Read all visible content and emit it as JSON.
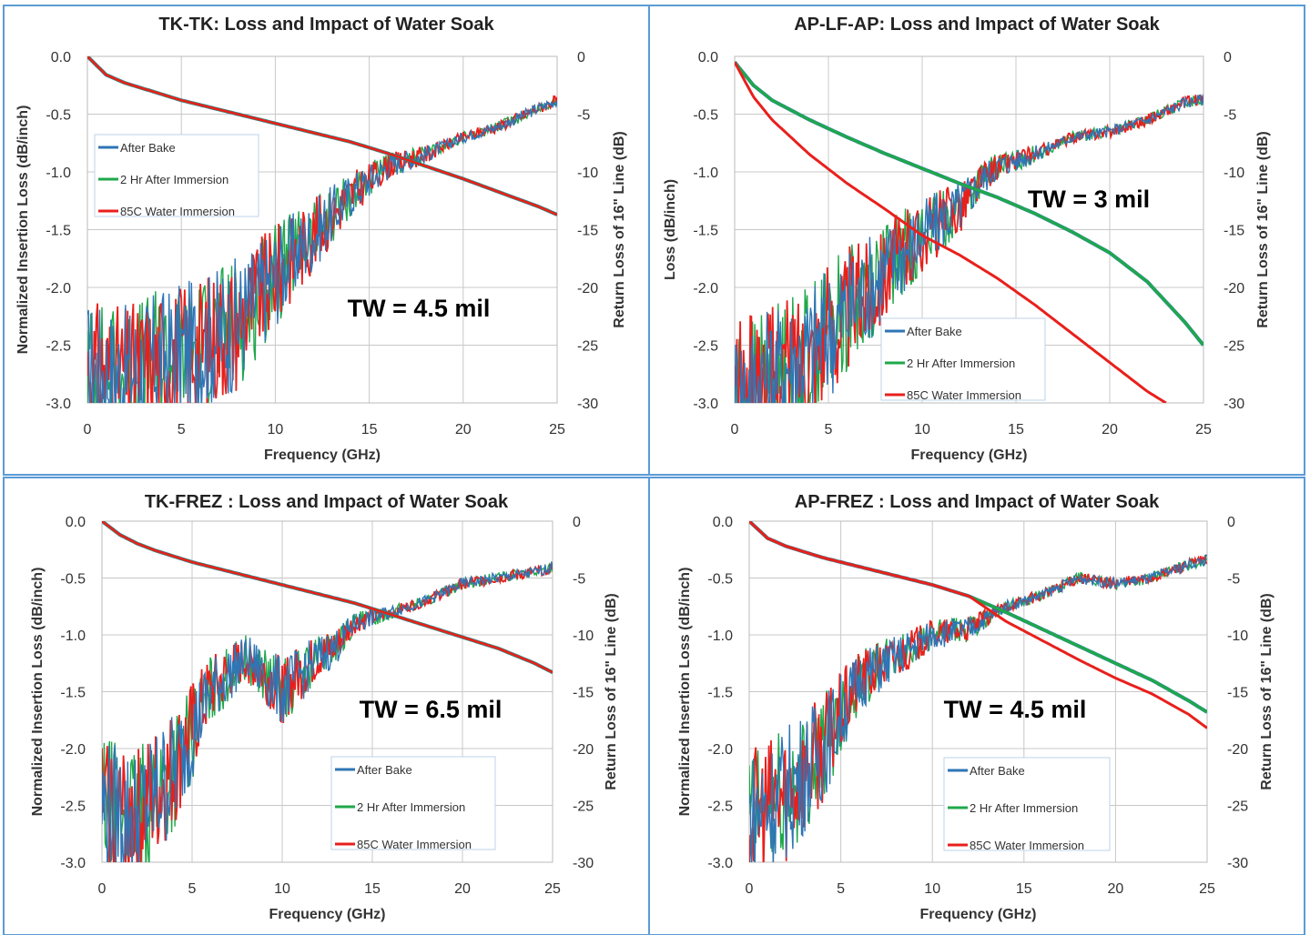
{
  "chart_data": [
    {
      "type": "line",
      "title": "TK-TK: Loss and Impact of Water Soak",
      "xlabel": "Frequency (GHz)",
      "ylabel": "Normalized Insertion Loss (dB/inch)",
      "y2label": "Return Loss of 16\" Line (dB)",
      "xlim": [
        0,
        25
      ],
      "xticks": [
        "0",
        "5",
        "10",
        "15",
        "20",
        "25"
      ],
      "ylim": [
        -3.0,
        0.0
      ],
      "yticks": [
        "0.0",
        "-0.5",
        "-1.0",
        "-1.5",
        "-2.0",
        "-2.5",
        "-3.0"
      ],
      "y2lim": [
        -30,
        0
      ],
      "y2ticks": [
        "0",
        "-5",
        "-10",
        "-15",
        "-20",
        "-25",
        "-30"
      ],
      "annotation": "TW = 4.5 mil",
      "legend_position": "upper-left",
      "series": [
        {
          "name": "After Bake",
          "color": "#2e75b6"
        },
        {
          "name": "2 Hr After Immersion",
          "color": "#1fa84a"
        },
        {
          "name": "85C Water Immersion",
          "color": "#e8201c"
        }
      ],
      "insertion_loss": {
        "x": [
          0,
          1,
          2,
          3,
          4,
          5,
          6,
          8,
          10,
          12,
          14,
          16,
          18,
          20,
          22,
          24,
          25
        ],
        "y": [
          0,
          -0.16,
          -0.23,
          -0.28,
          -0.33,
          -0.38,
          -0.42,
          -0.5,
          -0.58,
          -0.66,
          -0.74,
          -0.84,
          -0.95,
          -1.06,
          -1.18,
          -1.3,
          -1.37
        ]
      },
      "return_loss": {
        "x": [
          0,
          2,
          4,
          6,
          8,
          9,
          10,
          12,
          14,
          16,
          18,
          20,
          22,
          24,
          25
        ],
        "y": [
          -27,
          -27.5,
          -26,
          -25,
          -23,
          -21,
          -19,
          -15.5,
          -12,
          -9.5,
          -8.5,
          -7,
          -6,
          -4.5,
          -3.8
        ]
      }
    },
    {
      "type": "line",
      "title": "AP-LF-AP: Loss and Impact of Water Soak",
      "xlabel": "Frequency (GHz)",
      "ylabel": "Loss (dB/inch)",
      "y2label": "Return Loss of 16\" Line (dB)",
      "xlim": [
        0,
        25
      ],
      "xticks": [
        "0",
        "5",
        "10",
        "15",
        "20",
        "25"
      ],
      "ylim": [
        -3.0,
        0.0
      ],
      "yticks": [
        "0.0",
        "-0.5",
        "-1.0",
        "-1.5",
        "-2.0",
        "-2.5",
        "-3.0"
      ],
      "y2lim": [
        -30,
        0
      ],
      "y2ticks": [
        "0",
        "-5",
        "-10",
        "-15",
        "-20",
        "-25",
        "-30"
      ],
      "annotation": "TW = 3 mil",
      "legend_position": "lower-center",
      "series": [
        {
          "name": "After Bake",
          "color": "#2e75b6"
        },
        {
          "name": "2 Hr After Immersion",
          "color": "#1fa84a"
        },
        {
          "name": "85C Water Immersion",
          "color": "#e8201c"
        }
      ],
      "insertion_loss_bake": {
        "x": [
          0,
          1,
          2,
          4,
          6,
          8,
          10,
          12,
          14,
          16,
          18,
          20,
          22,
          24,
          25
        ],
        "y": [
          -0.05,
          -0.25,
          -0.38,
          -0.55,
          -0.7,
          -0.84,
          -0.97,
          -1.1,
          -1.22,
          -1.36,
          -1.52,
          -1.7,
          -1.95,
          -2.3,
          -2.5
        ]
      },
      "insertion_loss_wet": {
        "x": [
          0,
          1,
          2,
          4,
          6,
          8,
          10,
          12,
          14,
          16,
          18,
          20,
          22,
          23
        ],
        "y": [
          -0.05,
          -0.35,
          -0.55,
          -0.85,
          -1.1,
          -1.32,
          -1.55,
          -1.72,
          -1.92,
          -2.15,
          -2.4,
          -2.65,
          -2.9,
          -3.0
        ]
      },
      "return_loss": {
        "x": [
          0,
          2,
          4,
          6,
          8,
          10,
          12,
          13,
          14,
          16,
          18,
          20,
          22,
          24,
          25
        ],
        "y": [
          -29,
          -27.5,
          -25.5,
          -22,
          -18.5,
          -15.5,
          -13,
          -11,
          -9.5,
          -8.5,
          -7,
          -6.5,
          -5.5,
          -4,
          -3.7
        ]
      }
    },
    {
      "type": "line",
      "title": "TK-FREZ : Loss and Impact of Water Soak",
      "xlabel": "Frequency (GHz)",
      "ylabel": "Normalized Insertion Loss (dB/inch)",
      "y2label": "Return Loss of 16\" Line (dB)",
      "xlim": [
        0,
        25
      ],
      "xticks": [
        "0",
        "5",
        "10",
        "15",
        "20",
        "25"
      ],
      "ylim": [
        -3.0,
        0.0
      ],
      "yticks": [
        "0.0",
        "-0.5",
        "-1.0",
        "-1.5",
        "-2.0",
        "-2.5",
        "-3.0"
      ],
      "y2lim": [
        -30,
        0
      ],
      "y2ticks": [
        "0",
        "-5",
        "-10",
        "-15",
        "-20",
        "-25",
        "-30"
      ],
      "annotation": "TW = 6.5 mil",
      "legend_position": "lower-center",
      "series": [
        {
          "name": "After Bake",
          "color": "#2e75b6"
        },
        {
          "name": "2 Hr After Immersion",
          "color": "#1fa84a"
        },
        {
          "name": "85C Water Immersion",
          "color": "#e8201c"
        }
      ],
      "insertion_loss": {
        "x": [
          0,
          1,
          2,
          3,
          4,
          5,
          6,
          8,
          10,
          12,
          14,
          16,
          18,
          20,
          22,
          24,
          25
        ],
        "y": [
          0,
          -0.12,
          -0.2,
          -0.26,
          -0.31,
          -0.36,
          -0.4,
          -0.48,
          -0.56,
          -0.64,
          -0.72,
          -0.82,
          -0.92,
          -1.02,
          -1.12,
          -1.25,
          -1.33
        ]
      },
      "return_loss": {
        "x": [
          0,
          2,
          4,
          6,
          8,
          10,
          12,
          13,
          14,
          16,
          18,
          20,
          22,
          24,
          25
        ],
        "y": [
          -25,
          -26,
          -22,
          -15,
          -12,
          -15,
          -12,
          -11,
          -9,
          -8,
          -7,
          -5.5,
          -5,
          -4.5,
          -4
        ]
      }
    },
    {
      "type": "line",
      "title": "AP-FREZ : Loss and Impact of Water Soak",
      "xlabel": "Frequency (GHz)",
      "ylabel": "Normalized Insertion Loss (dB/inch)",
      "y2label": "Return Loss of 16\" Line (dB)",
      "xlim": [
        0,
        25
      ],
      "xticks": [
        "0",
        "5",
        "10",
        "15",
        "20",
        "25"
      ],
      "ylim": [
        -3.0,
        0.0
      ],
      "yticks": [
        "0.0",
        "-0.5",
        "-1.0",
        "-1.5",
        "-2.0",
        "-2.5",
        "-3.0"
      ],
      "y2lim": [
        -30,
        0
      ],
      "y2ticks": [
        "0",
        "-5",
        "-10",
        "-15",
        "-20",
        "-25",
        "-30"
      ],
      "annotation": "TW = 4.5 mil",
      "legend_position": "lower-center",
      "series": [
        {
          "name": "After Bake",
          "color": "#2e75b6"
        },
        {
          "name": "2 Hr After Immersion",
          "color": "#1fa84a"
        },
        {
          "name": "85C Water Immersion",
          "color": "#e8201c"
        }
      ],
      "insertion_loss_bake": {
        "x": [
          0,
          1,
          2,
          4,
          6,
          8,
          10,
          12,
          14,
          16,
          18,
          20,
          22,
          24,
          25
        ],
        "y": [
          0,
          -0.15,
          -0.22,
          -0.32,
          -0.4,
          -0.48,
          -0.56,
          -0.66,
          -0.8,
          -0.95,
          -1.1,
          -1.25,
          -1.4,
          -1.58,
          -1.68
        ]
      },
      "insertion_loss_wet": {
        "x": [
          0,
          1,
          2,
          4,
          6,
          8,
          10,
          12,
          14,
          16,
          18,
          20,
          22,
          24,
          25
        ],
        "y": [
          0,
          -0.15,
          -0.22,
          -0.32,
          -0.4,
          -0.48,
          -0.56,
          -0.66,
          -0.88,
          -1.05,
          -1.22,
          -1.38,
          -1.52,
          -1.7,
          -1.82
        ]
      },
      "return_loss": {
        "x": [
          0,
          1,
          2,
          3,
          4,
          5,
          6,
          8,
          10,
          12,
          13,
          14,
          16,
          18,
          20,
          22,
          24,
          25
        ],
        "y": [
          -26,
          -25,
          -24,
          -22,
          -20,
          -17,
          -14,
          -12,
          -10,
          -9.5,
          -8.5,
          -7.5,
          -6.5,
          -5,
          -5.5,
          -5,
          -3.8,
          -3.4
        ]
      }
    }
  ]
}
